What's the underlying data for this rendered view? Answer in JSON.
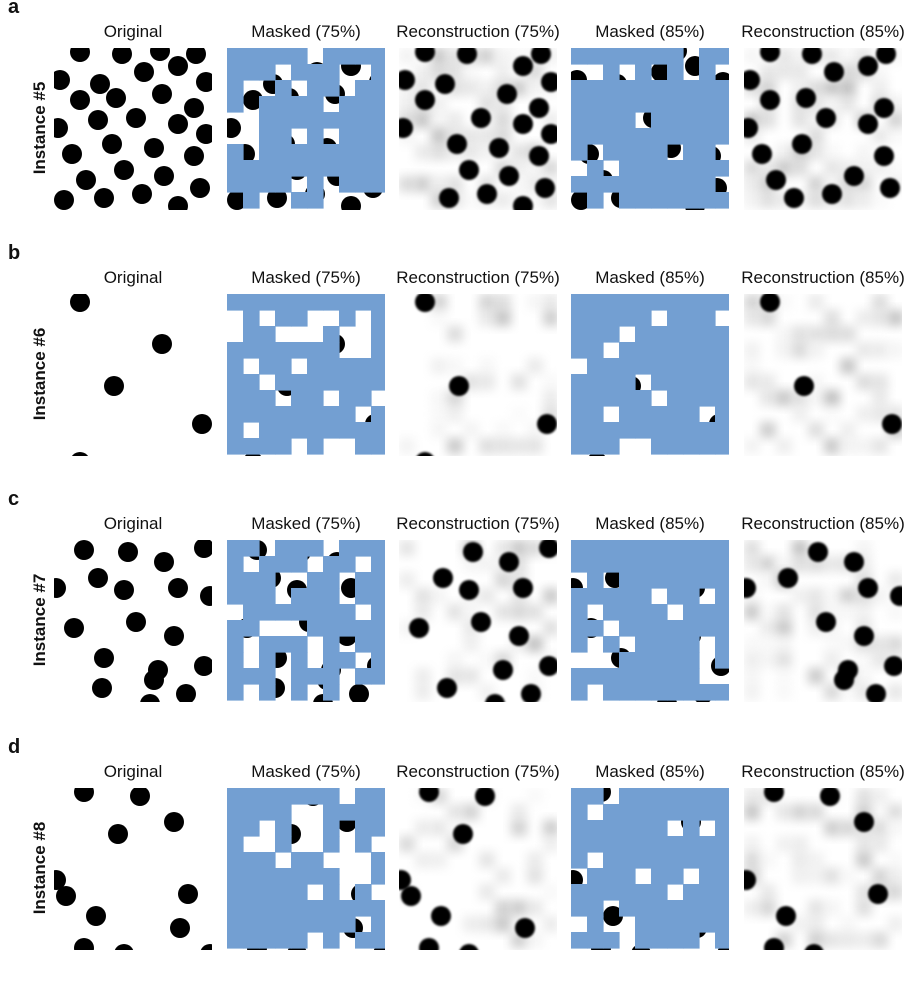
{
  "columns": [
    "Original",
    "Masked (75%)",
    "Reconstruction (75%)",
    "Masked (85%)",
    "Reconstruction (85%)"
  ],
  "colors": {
    "mask": "#739fd2",
    "disk": "#000000",
    "background": "#ffffff"
  },
  "panels": [
    {
      "letter": "a",
      "label": "Instance #5"
    },
    {
      "letter": "b",
      "label": "Instance #6"
    },
    {
      "letter": "c",
      "label": "Instance #7"
    },
    {
      "letter": "d",
      "label": "Instance #8"
    }
  ]
}
